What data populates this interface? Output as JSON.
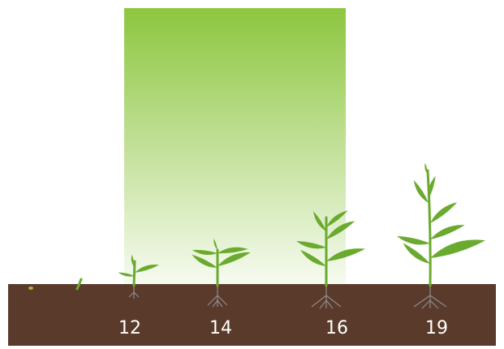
{
  "stages": [
    {
      "label": "12"
    },
    {
      "label": "14"
    },
    {
      "label": "16"
    },
    {
      "label": "19"
    }
  ]
}
